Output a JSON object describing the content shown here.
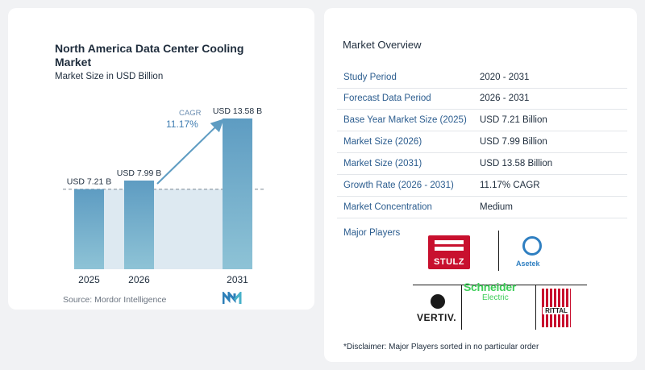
{
  "chart_data": {
    "type": "bar",
    "title": "North America Data Center Cooling Market",
    "subtitle": "Market Size in USD Billion",
    "categories": [
      "2025",
      "2026",
      "2031"
    ],
    "values": [
      7.21,
      7.99,
      13.58
    ],
    "value_labels": [
      "USD 7.21 B",
      "USD 7.99 B",
      "USD 13.58 B"
    ],
    "ylim": [
      0,
      13.58
    ],
    "cagr_label": "CAGR",
    "cagr_value": "11.17%",
    "reference_line_value": 7.21,
    "bar_color": "#6ea6c8",
    "source": "Source:  Mordor Intelligence"
  },
  "overview": {
    "title": "Market Overview",
    "rows": [
      {
        "key": "Study Period",
        "value": "2020 - 2031"
      },
      {
        "key": "Forecast Data Period",
        "value": "2026 - 2031"
      },
      {
        "key": "Base Year Market Size (2025)",
        "value": "USD 7.21 Billion"
      },
      {
        "key": "Market Size (2026)",
        "value": "USD 7.99 Billion"
      },
      {
        "key": "Market Size (2031)",
        "value": "USD 13.58 Billion"
      },
      {
        "key": "Growth Rate (2026 - 2031)",
        "value": "11.17% CAGR"
      },
      {
        "key": "Market Concentration",
        "value": "Medium"
      }
    ],
    "players_label": "Major Players",
    "disclaimer": "*Disclaimer: Major Players sorted in no particular order"
  },
  "logos": {
    "stulz": "STULZ",
    "asetek": "Asetek",
    "vertiv": "VERTIV.",
    "schneider": "Schneider",
    "schneider_sub": "Electric",
    "rittal": "RITTAL"
  }
}
